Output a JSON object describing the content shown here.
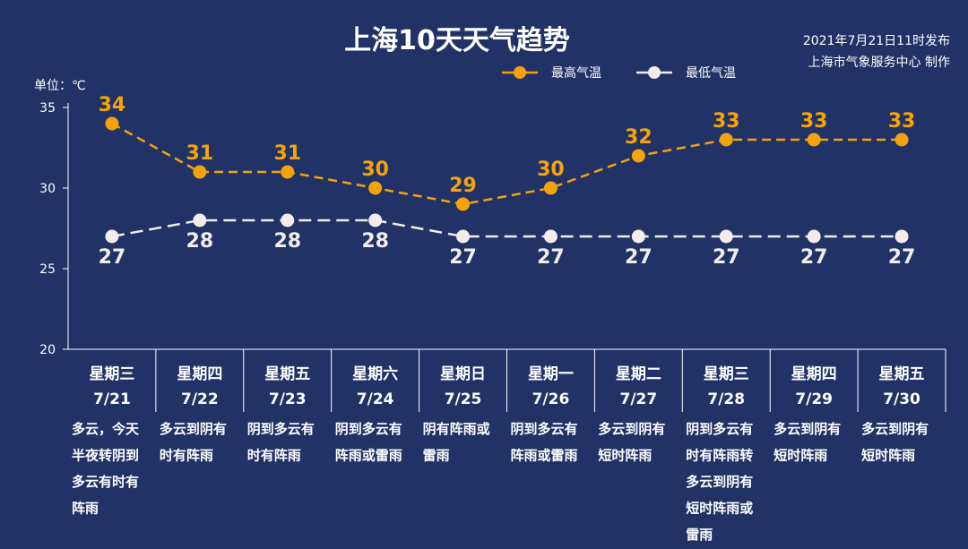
{
  "header": {
    "title": "上海10天天气趋势",
    "publish_time": "2021年7月21日11时发布",
    "publisher": "上海市气象服务中心 制作"
  },
  "chart_data": {
    "type": "line",
    "title": "上海10天天气趋势",
    "ylabel": "单位：℃",
    "ylim": [
      20,
      35
    ],
    "yticks": [
      20,
      25,
      30,
      35
    ],
    "weekdays": [
      "星期三",
      "星期四",
      "星期五",
      "星期六",
      "星期日",
      "星期一",
      "星期二",
      "星期三",
      "星期四",
      "星期五"
    ],
    "categories": [
      "7/21",
      "7/22",
      "7/23",
      "7/24",
      "7/25",
      "7/26",
      "7/27",
      "7/28",
      "7/29",
      "7/30"
    ],
    "descriptions": [
      [
        "多云，今天",
        "半夜转阴到",
        "多云有时有",
        "阵雨"
      ],
      [
        "多云到阴有",
        "时有阵雨"
      ],
      [
        "阴到多云有",
        "时有阵雨"
      ],
      [
        "阴到多云有",
        "阵雨或雷雨"
      ],
      [
        "阴有阵雨或",
        "雷雨"
      ],
      [
        "阴到多云有",
        "阵雨或雷雨"
      ],
      [
        "多云到阴有",
        "短时阵雨"
      ],
      [
        "阴到多云有",
        "时有阵雨转",
        "多云到阴有",
        "短时阵雨或",
        "雷雨"
      ],
      [
        "多云到阴有",
        "短时阵雨"
      ],
      [
        "多云到阴有",
        "短时阵雨"
      ]
    ],
    "series": [
      {
        "name": "最高气温",
        "values": [
          34,
          31,
          31,
          30,
          29,
          30,
          32,
          33,
          33,
          33
        ],
        "color": "#f5a30a"
      },
      {
        "name": "最低气温",
        "values": [
          27,
          28,
          28,
          28,
          27,
          27,
          27,
          27,
          27,
          27
        ],
        "color": "#f2ecec"
      }
    ],
    "grid": false,
    "legend": "top-center"
  }
}
